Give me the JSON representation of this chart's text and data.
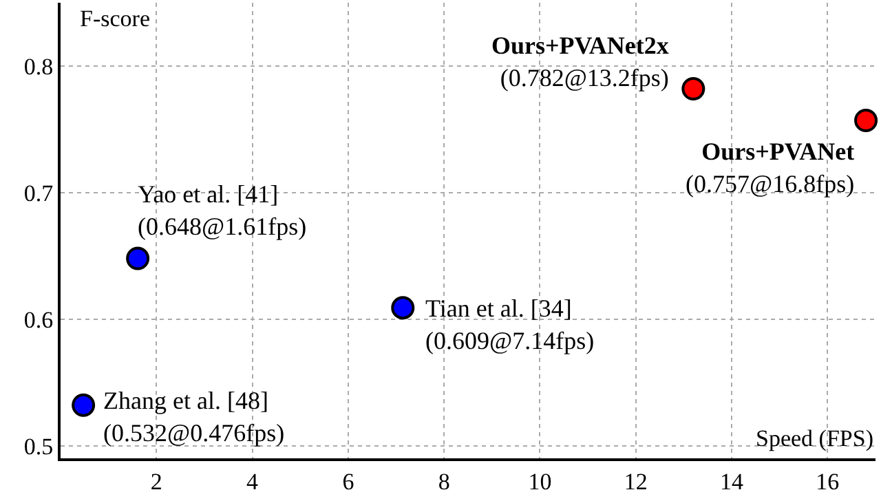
{
  "chart_data": {
    "type": "scatter",
    "xlabel": "Speed (FPS)",
    "ylabel": "F-score",
    "series": [
      {
        "color": "#0000ff",
        "x": [
          0.476,
          1.61,
          7.14
        ],
        "values": [
          0.532,
          0.648,
          0.609
        ]
      },
      {
        "color": "#ff0000",
        "x": [
          13.2,
          16.8
        ],
        "values": [
          0.782,
          0.757
        ]
      }
    ],
    "annotations": [
      {
        "text": "Zhang et al. [48]\n(0.532@0.476fps)",
        "x": 0.476,
        "y": 0.532
      },
      {
        "text": "Yao et al. [41]\n(0.648@1.61fps)",
        "x": 1.61,
        "y": 0.648
      },
      {
        "text": "Tian et al. [34]\n(0.609@7.14fps)",
        "x": 7.14,
        "y": 0.609
      },
      {
        "text": "Ours+PVANet2x\n(0.782@13.2fps)",
        "x": 13.2,
        "y": 0.782
      },
      {
        "text": "Ours+PVANet\n(0.757@16.8fps)",
        "x": 16.8,
        "y": 0.757
      }
    ],
    "xlim": [
      0,
      17
    ],
    "ylim": [
      0.49,
      0.85
    ],
    "xticks": [
      2,
      4,
      6,
      8,
      10,
      12,
      14,
      16
    ],
    "yticks": [
      0.5,
      0.6,
      0.7,
      0.8
    ],
    "grid": true,
    "marker": "circle"
  }
}
